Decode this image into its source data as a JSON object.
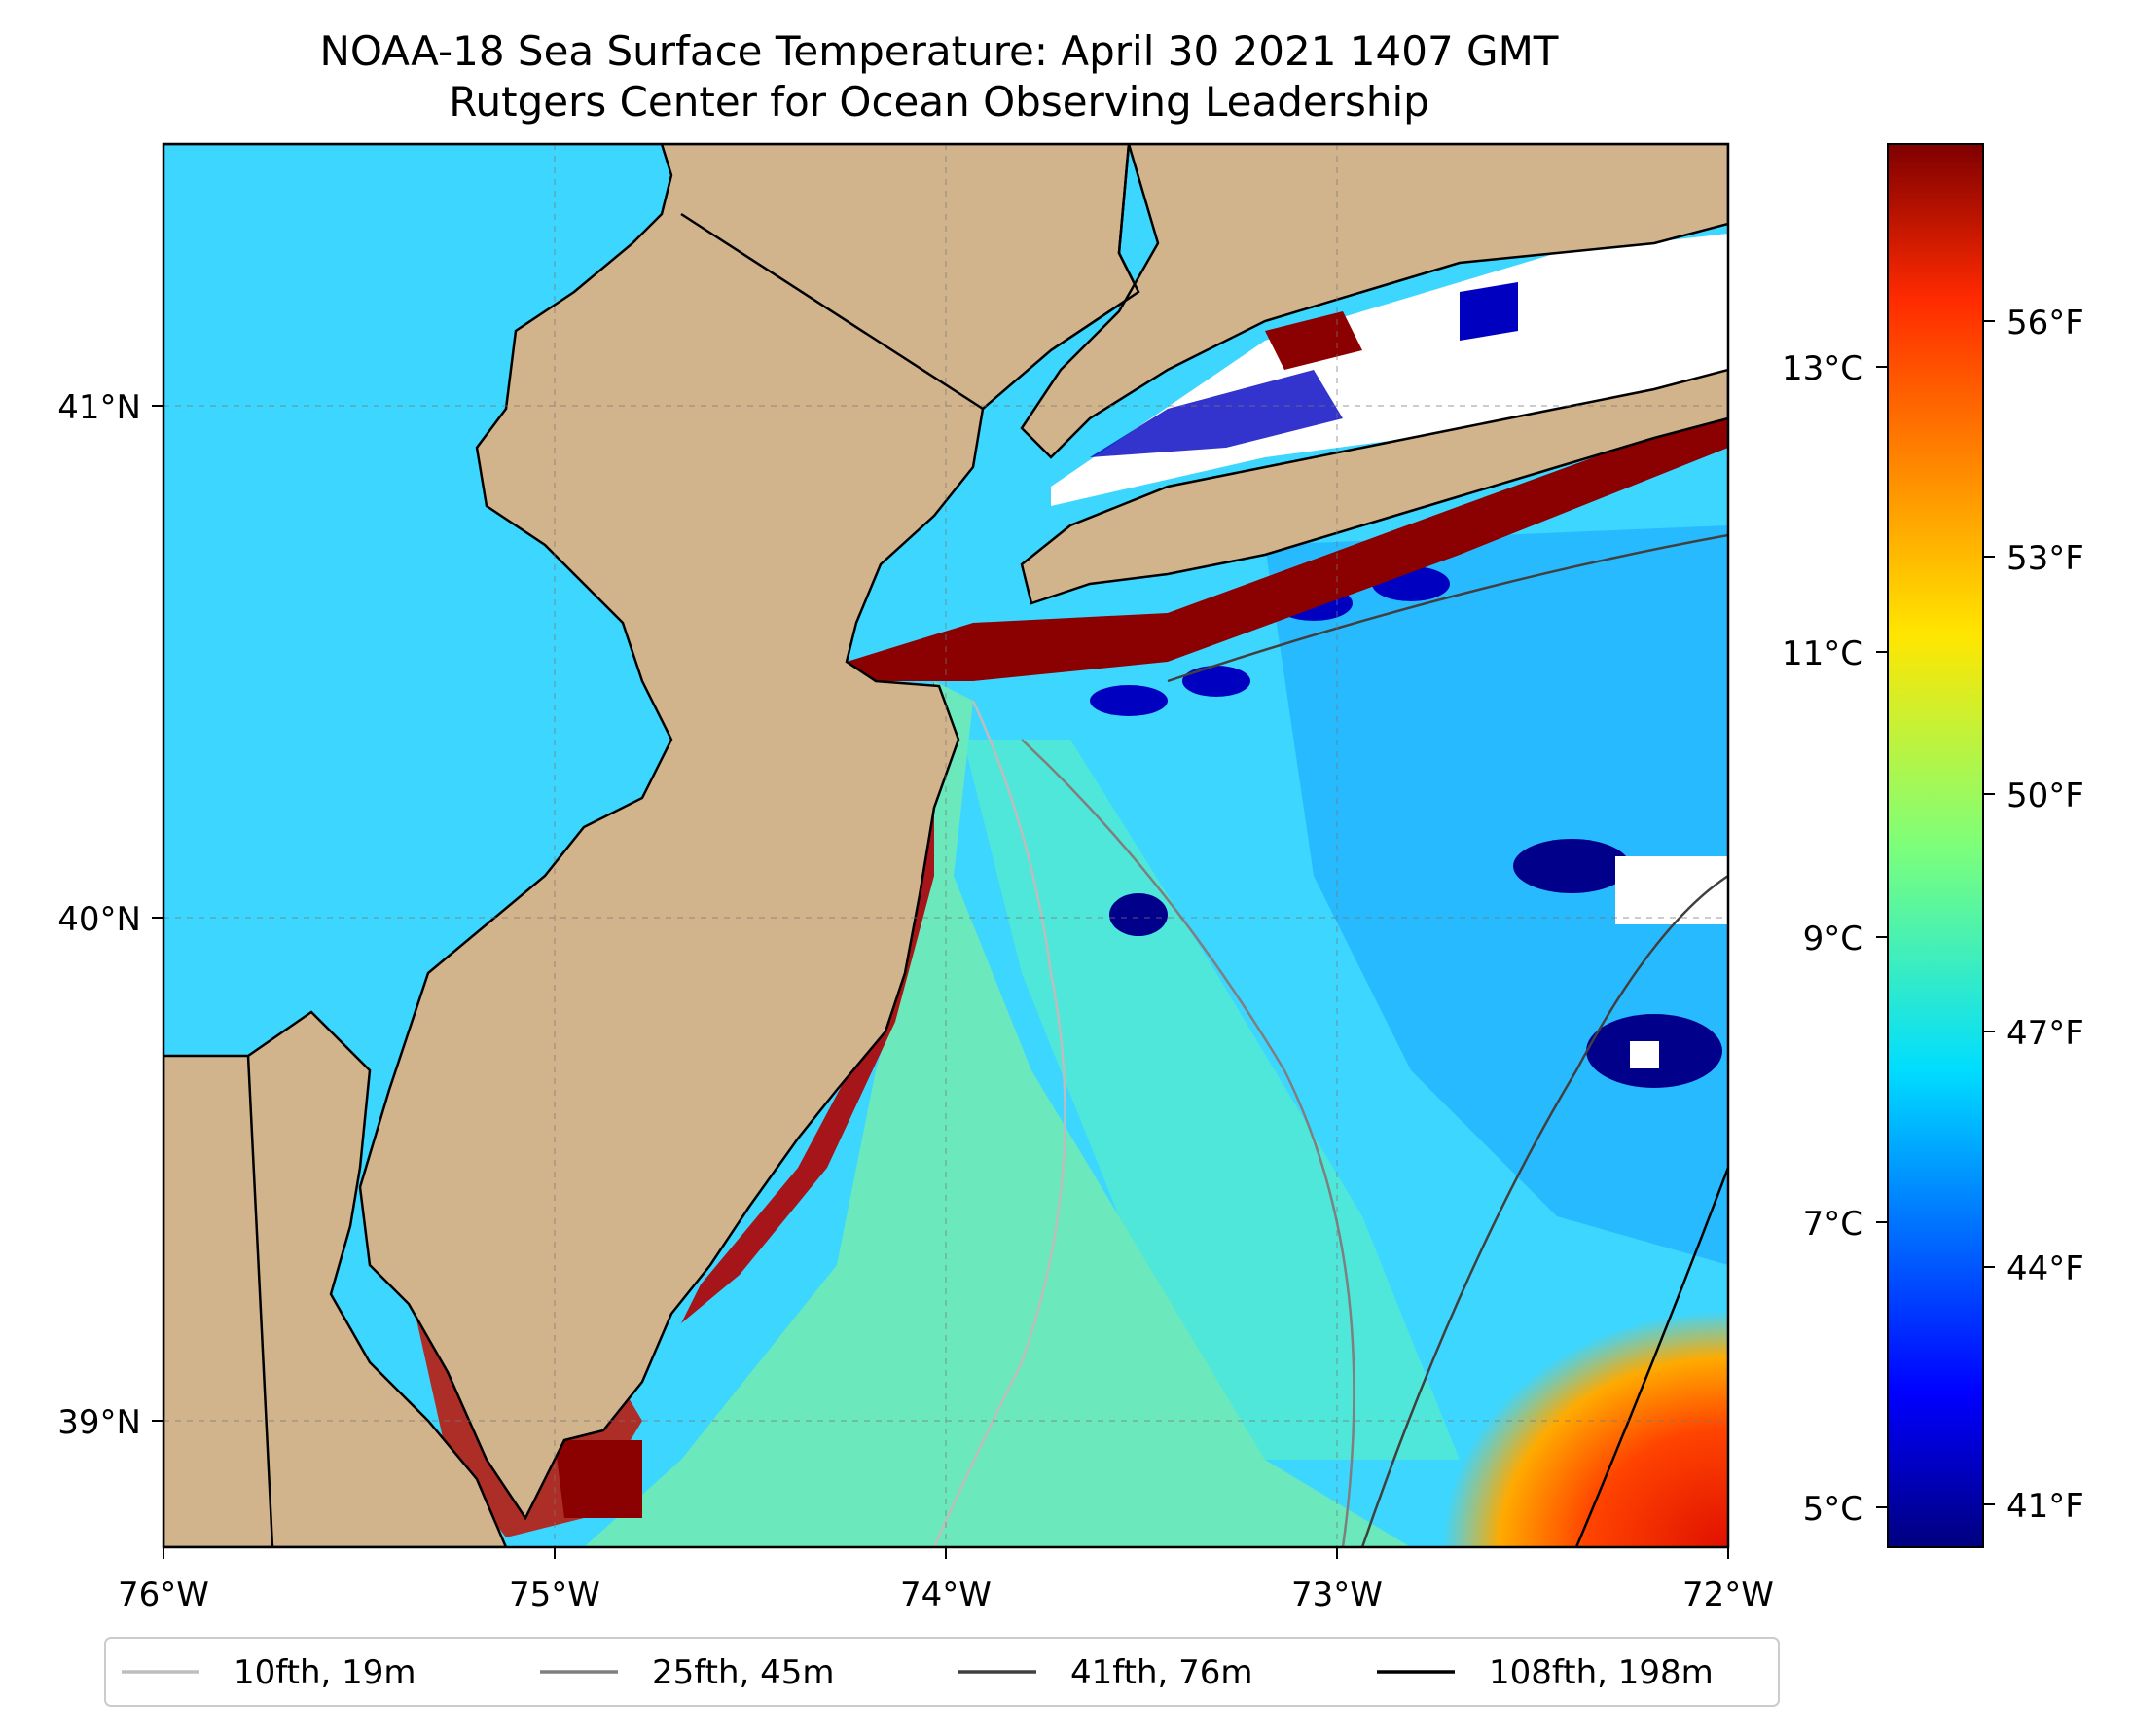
{
  "title": {
    "line1": "NOAA-18 Sea Surface Temperature: April 30 2021 1407 GMT",
    "line2": "Rutgers Center for Ocean Observing Leadership"
  },
  "map": {
    "lon_ticks": [
      "76°W",
      "75°W",
      "74°W",
      "73°W",
      "72°W"
    ],
    "lat_ticks": [
      "41°N",
      "40°N",
      "39°N"
    ],
    "lon_range": [
      -76,
      -72
    ],
    "lat_range": [
      38.75,
      41.5
    ],
    "land_color": "#d2b48c",
    "grid": true
  },
  "colorbar": {
    "celsius_ticks": [
      "13°C",
      "11°C",
      "9°C",
      "7°C",
      "5°C"
    ],
    "fahrenheit_ticks": [
      "56°F",
      "53°F",
      "50°F",
      "47°F",
      "44°F",
      "41°F"
    ],
    "colormap": "jet",
    "range_c": [
      4.6,
      14.5
    ]
  },
  "legend": {
    "items": [
      {
        "label": "10fth, 19m",
        "color": "#bdbdbd"
      },
      {
        "label": "25fth, 45m",
        "color": "#7f7f7f"
      },
      {
        "label": "41fth, 76m",
        "color": "#404040"
      },
      {
        "label": "108fth, 198m",
        "color": "#000000"
      }
    ]
  }
}
